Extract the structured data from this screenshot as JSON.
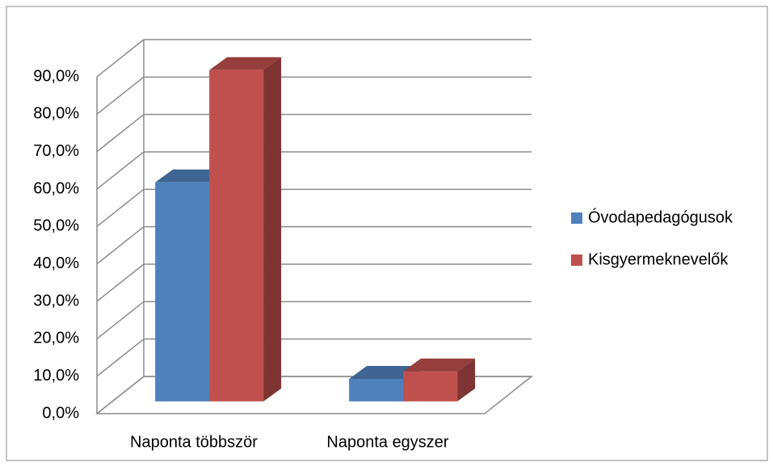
{
  "chart_data": {
    "type": "bar3d",
    "categories": [
      "Naponta többször",
      "Naponta egyszer"
    ],
    "series": [
      {
        "name": "Óvodapedagógusok",
        "color": "#4f81bd",
        "values": [
          58.5,
          6
        ]
      },
      {
        "name": "Kisgyermeknevelők",
        "color": "#c0504d",
        "values": [
          88.5,
          8
        ]
      }
    ],
    "ylim": [
      0,
      90
    ],
    "yticks": [
      {
        "value": 0,
        "label": "0,0%"
      },
      {
        "value": 10,
        "label": "10,0%"
      },
      {
        "value": 20,
        "label": "20,0%"
      },
      {
        "value": 30,
        "label": "30,0%"
      },
      {
        "value": 40,
        "label": "40,0%"
      },
      {
        "value": 50,
        "label": "50,0%"
      },
      {
        "value": 60,
        "label": "60,0%"
      },
      {
        "value": 70,
        "label": "70,0%"
      },
      {
        "value": 80,
        "label": "80,0%"
      },
      {
        "value": 90,
        "label": "90,0%"
      }
    ],
    "grid": true,
    "legend": "right"
  }
}
